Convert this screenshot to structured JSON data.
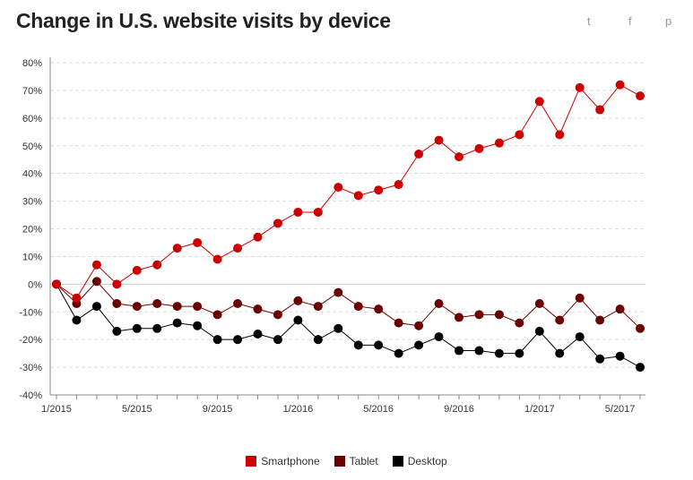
{
  "title": "Change in U.S. website visits by device",
  "share": {
    "twitter": "t",
    "facebook": "f",
    "pinterest": "p"
  },
  "chart_data": {
    "type": "line",
    "title": "Change in U.S. website visits by device",
    "x": [
      "1/2015",
      "2/2015",
      "3/2015",
      "4/2015",
      "5/2015",
      "6/2015",
      "7/2015",
      "8/2015",
      "9/2015",
      "10/2015",
      "11/2015",
      "12/2015",
      "1/2016",
      "2/2016",
      "3/2016",
      "4/2016",
      "5/2016",
      "6/2016",
      "7/2016",
      "8/2016",
      "9/2016",
      "10/2016",
      "11/2016",
      "12/2016",
      "1/2017",
      "2/2017",
      "3/2017",
      "4/2017",
      "5/2017",
      "6/2017"
    ],
    "x_tick_labels": [
      "1/2015",
      "5/2015",
      "9/2015",
      "1/2016",
      "5/2016",
      "9/2016",
      "1/2017",
      "5/2017"
    ],
    "y_tick_labels": [
      "-40%",
      "-30%",
      "-20%",
      "-10%",
      "0%",
      "10%",
      "20%",
      "30%",
      "40%",
      "50%",
      "60%",
      "70%",
      "80%"
    ],
    "ylim": [
      -40,
      80
    ],
    "grid": true,
    "legend_placement": "bottom",
    "series": [
      {
        "name": "Smartphone",
        "color": "#cc0000",
        "values": [
          0,
          -5,
          7,
          0,
          5,
          7,
          13,
          15,
          9,
          13,
          17,
          22,
          26,
          26,
          35,
          32,
          34,
          36,
          47,
          52,
          46,
          49,
          51,
          54,
          66,
          54,
          71,
          63,
          72,
          68
        ]
      },
      {
        "name": "Tablet",
        "color": "#6b0000",
        "values": [
          0,
          -7,
          1,
          -7,
          -8,
          -7,
          -8,
          -8,
          -11,
          -7,
          -9,
          -11,
          -6,
          -8,
          -3,
          -8,
          -9,
          -14,
          -15,
          -7,
          -12,
          -11,
          -11,
          -14,
          -7,
          -13,
          -5,
          -13,
          -9,
          -16
        ]
      },
      {
        "name": "Desktop",
        "color": "#000000",
        "values": [
          0,
          -13,
          -8,
          -17,
          -16,
          -16,
          -14,
          -15,
          -20,
          -20,
          -18,
          -20,
          -13,
          -20,
          -16,
          -22,
          -22,
          -25,
          -22,
          -19,
          -24,
          -24,
          -25,
          -25,
          -17,
          -25,
          -19,
          -27,
          -26,
          -30
        ]
      }
    ]
  }
}
